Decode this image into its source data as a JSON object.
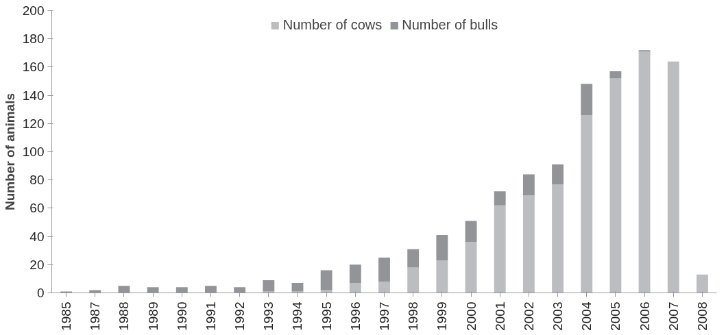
{
  "chart_data": {
    "type": "bar",
    "stacked": true,
    "ylabel": "Number of animals",
    "categories": [
      "1985",
      "1987",
      "1988",
      "1989",
      "1990",
      "1991",
      "1992",
      "1993",
      "1994",
      "1995",
      "1996",
      "1997",
      "1998",
      "1999",
      "2000",
      "2001",
      "2002",
      "2003",
      "2004",
      "2005",
      "2006",
      "2007",
      "2008"
    ],
    "series": [
      {
        "name": "Number of cows",
        "color": "#bcbdc1",
        "values": [
          0,
          0,
          0,
          0,
          0,
          0,
          0,
          1,
          1,
          2,
          7,
          8,
          18,
          23,
          36,
          62,
          69,
          77,
          126,
          152,
          171,
          164,
          13
        ]
      },
      {
        "name": "Number of bulls",
        "color": "#939498",
        "values": [
          1,
          2,
          5,
          4,
          4,
          5,
          4,
          8,
          6,
          14,
          13,
          17,
          13,
          18,
          15,
          10,
          15,
          14,
          22,
          5,
          1,
          0,
          0
        ]
      }
    ],
    "ylim": [
      0,
      200
    ],
    "yticks": [
      0,
      20,
      40,
      60,
      80,
      100,
      120,
      140,
      160,
      180,
      200
    ],
    "grid": false,
    "legend": "top"
  }
}
